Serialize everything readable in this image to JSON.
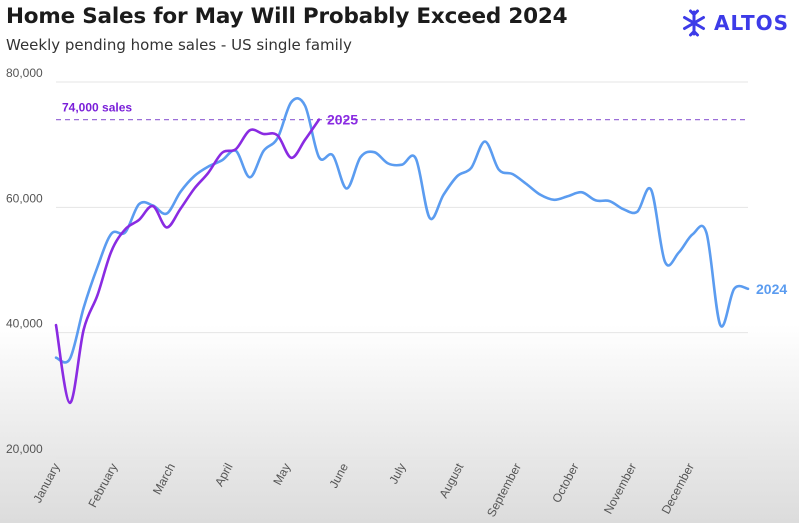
{
  "header": {
    "title": "Home Sales for May Will Probably Exceed 2024",
    "subtitle": "Weekly pending home sales - US single family"
  },
  "brand": {
    "name": "ALTOS",
    "icon": "snowflake-icon",
    "color": "#3d3be8"
  },
  "chart_data": {
    "type": "line",
    "title": "Home Sales for May Will Probably Exceed 2024",
    "subtitle": "Weekly pending home sales - US single family",
    "xlabel": "",
    "ylabel": "",
    "ylim": [
      20000,
      80000
    ],
    "yticks": [
      20000,
      40000,
      60000,
      80000
    ],
    "ytick_labels": [
      "20,000",
      "40,000",
      "60,000",
      "80,000"
    ],
    "xtick_labels": [
      "January",
      "February",
      "March",
      "April",
      "May",
      "June",
      "July",
      "August",
      "September",
      "October",
      "November",
      "December"
    ],
    "grid": true,
    "reference_line": {
      "value": 74000,
      "label": "74,000 sales",
      "color": "#7a1fd9"
    },
    "series": [
      {
        "name": "2024",
        "color": "#5b9cf0",
        "values": [
          36000,
          35800,
          44000,
          50500,
          55800,
          56000,
          60500,
          60300,
          59000,
          62500,
          65000,
          66500,
          67500,
          69000,
          64800,
          69000,
          71000,
          76800,
          76200,
          68000,
          68300,
          63000,
          68000,
          68800,
          67000,
          66800,
          67800,
          58300,
          62000,
          65000,
          66300,
          70500,
          66000,
          65300,
          63700,
          62000,
          61200,
          61800,
          62400,
          61100,
          61000,
          59700,
          59300,
          62800,
          51300,
          52800,
          55700,
          55900,
          41200,
          47000,
          47000
        ]
      },
      {
        "name": "2025",
        "color": "#8a2be2",
        "values": [
          41200,
          28800,
          40500,
          46000,
          53000,
          56500,
          58000,
          60200,
          56800,
          59800,
          63000,
          65500,
          68700,
          69300,
          72300,
          71700,
          71500,
          67900,
          70800,
          74000
        ]
      }
    ]
  }
}
